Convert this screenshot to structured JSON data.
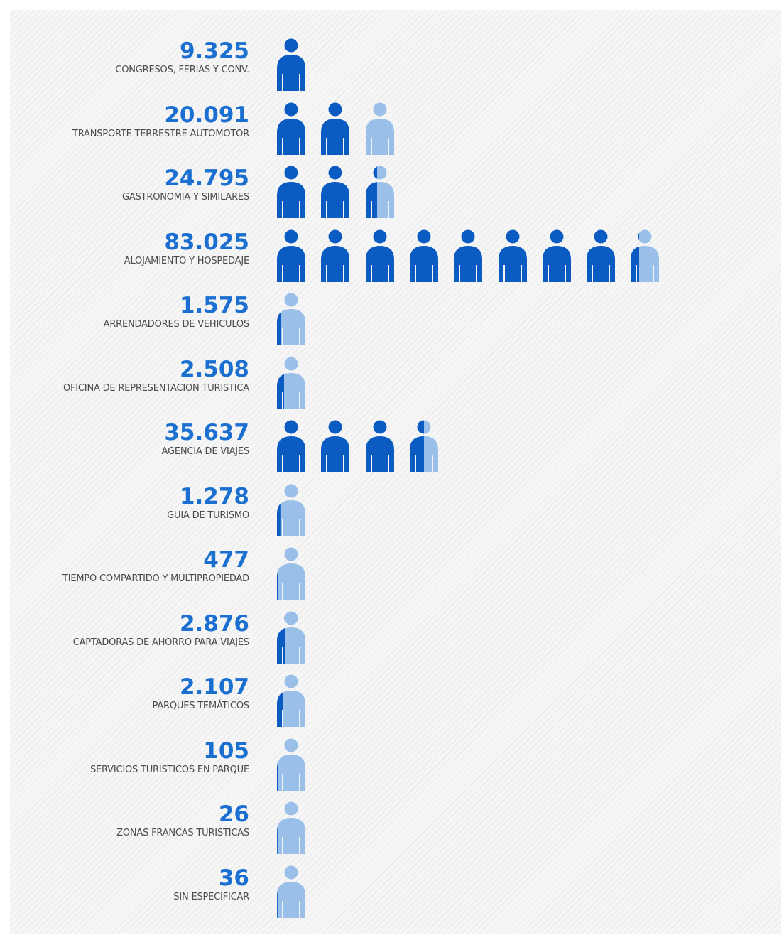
{
  "colors": {
    "dark": "#0a5cc2",
    "light": "#9ac0ea",
    "value_text": "#1a6fd0",
    "label_text": "#4a4a4a"
  },
  "chart_data": {
    "type": "pictogram",
    "icon": "person-icon",
    "rows": [
      {
        "label": "CONGRESOS, FERIAS Y CONV.",
        "value_text": "9.325",
        "value": 9325,
        "dark_icons": 1,
        "partial_fraction": 0,
        "light_icon": false
      },
      {
        "label": "TRANSPORTE TERRESTRE AUTOMOTOR",
        "value_text": "20.091",
        "value": 20091,
        "dark_icons": 2,
        "partial_fraction": 0,
        "light_icon": true
      },
      {
        "label": "GASTRONOMIA Y SIMILARES",
        "value_text": "24.795",
        "value": 24795,
        "dark_icons": 2,
        "partial_fraction": 0.4,
        "light_icon": true
      },
      {
        "label": "ALOJAMIENTO Y HOSPEDAJE",
        "value_text": "83.025",
        "value": 83025,
        "dark_icons": 8,
        "partial_fraction": 0.3,
        "light_icon": true
      },
      {
        "label": "ARRENDADORES DE VEHICULOS",
        "value_text": "1.575",
        "value": 1575,
        "dark_icons": 0,
        "partial_fraction": 0.15,
        "light_icon": true
      },
      {
        "label": "OFICINA DE REPRESENTACION TURISTICA",
        "value_text": "2.508",
        "value": 2508,
        "dark_icons": 0,
        "partial_fraction": 0.25,
        "light_icon": true
      },
      {
        "label": "AGENCIA DE VIAJES",
        "value_text": "35.637",
        "value": 35637,
        "dark_icons": 3,
        "partial_fraction": 0.5,
        "light_icon": true
      },
      {
        "label": "GUIA DE TURISMO",
        "value_text": "1.278",
        "value": 1278,
        "dark_icons": 0,
        "partial_fraction": 0.12,
        "light_icon": true
      },
      {
        "label": "TIEMPO COMPARTIDO Y MULTIPROPIEDAD",
        "value_text": "477",
        "value": 477,
        "dark_icons": 0,
        "partial_fraction": 0.05,
        "light_icon": true
      },
      {
        "label": "CAPTADORAS DE AHORRO PARA VIAJES",
        "value_text": "2.876",
        "value": 2876,
        "dark_icons": 0,
        "partial_fraction": 0.28,
        "light_icon": true
      },
      {
        "label": "PARQUES TEMÁTICOS",
        "value_text": "2.107",
        "value": 2107,
        "dark_icons": 0,
        "partial_fraction": 0.2,
        "light_icon": true
      },
      {
        "label": "SERVICIOS TURISTICOS EN PARQUE",
        "value_text": "105",
        "value": 105,
        "dark_icons": 0,
        "partial_fraction": 0.03,
        "light_icon": true
      },
      {
        "label": "ZONAS FRANCAS TURISTICAS",
        "value_text": "26",
        "value": 26,
        "dark_icons": 0,
        "partial_fraction": 0.02,
        "light_icon": true
      },
      {
        "label": "SIN ESPECIFICAR",
        "value_text": "36",
        "value": 36,
        "dark_icons": 0,
        "partial_fraction": 0.02,
        "light_icon": true
      }
    ]
  }
}
